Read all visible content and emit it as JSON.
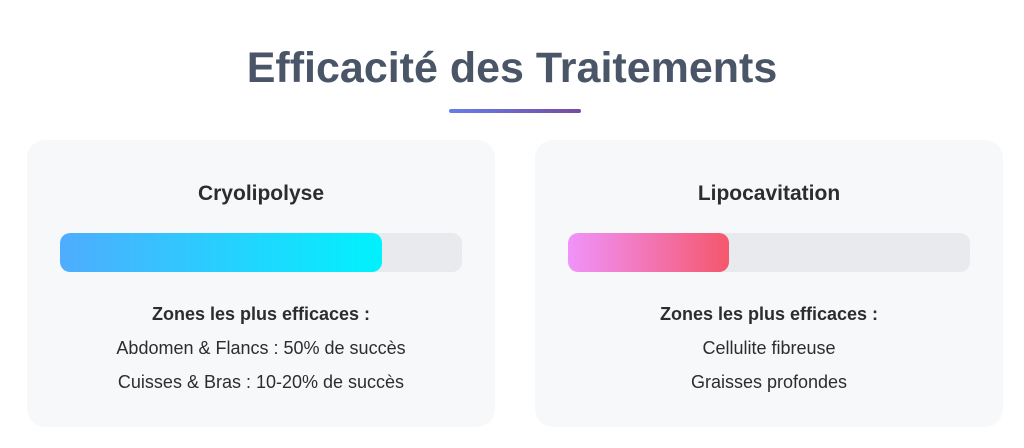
{
  "title": "Efficacité des Traitements",
  "cards": [
    {
      "name": "Cryolipolyse",
      "progress_percent": 80,
      "gradient": [
        "#4facfe",
        "#00f2fe"
      ],
      "zones_heading": "Zones les plus efficaces :",
      "zones": [
        "Abdomen & Flancs : 50% de succès",
        "Cuisses & Bras : 10-20% de succès"
      ]
    },
    {
      "name": "Lipocavitation",
      "progress_percent": 40,
      "gradient": [
        "#f093fb",
        "#f5576c"
      ],
      "zones_heading": "Zones les plus efficaces :",
      "zones": [
        "Cellulite fibreuse",
        "Graisses profondes"
      ]
    }
  ]
}
